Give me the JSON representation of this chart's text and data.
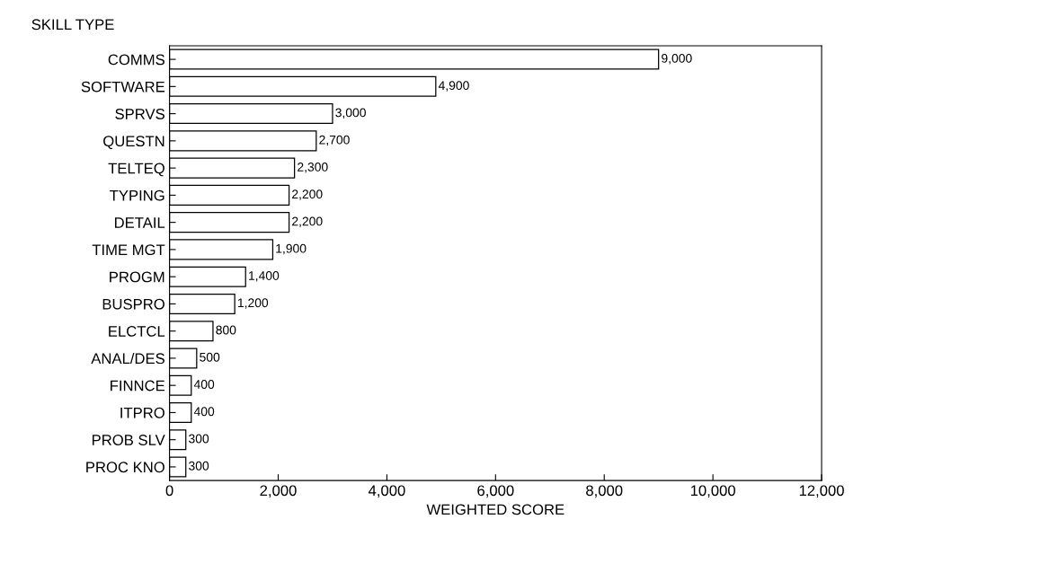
{
  "chart_data": {
    "type": "bar",
    "orientation": "horizontal",
    "ylabel": "SKILL TYPE",
    "xlabel": "WEIGHTED SCORE",
    "categories": [
      "COMMS",
      "SOFTWARE",
      "SPRVS",
      "QUESTN",
      "TELTEQ",
      "TYPING",
      "DETAIL",
      "TIME MGT",
      "PROGM",
      "BUSPRO",
      "ELCTCL",
      "ANAL/DES",
      "FINNCE",
      "ITPRO",
      "PROB SLV",
      "PROC KNO"
    ],
    "values": [
      9000,
      4900,
      3000,
      2700,
      2300,
      2200,
      2200,
      1900,
      1400,
      1200,
      800,
      500,
      400,
      400,
      300,
      300
    ],
    "value_labels": [
      "9,000",
      "4,900",
      "3,000",
      "2,700",
      "2,300",
      "2,200",
      "2,200",
      "1,900",
      "1,400",
      "1,200",
      "800",
      "500",
      "400",
      "400",
      "300",
      "300"
    ],
    "color": "#ffffff",
    "xlim": [
      0,
      12000
    ],
    "xticks": [
      {
        "value": 0,
        "label": "0"
      },
      {
        "value": 2000,
        "label": "2,000"
      },
      {
        "value": 4000,
        "label": "4,000"
      },
      {
        "value": 6000,
        "label": "6,000"
      },
      {
        "value": 8000,
        "label": "8,000"
      },
      {
        "value": 10000,
        "label": "10,000"
      },
      {
        "value": 12000,
        "label": "12,000"
      }
    ],
    "grid": false,
    "legend": false
  }
}
